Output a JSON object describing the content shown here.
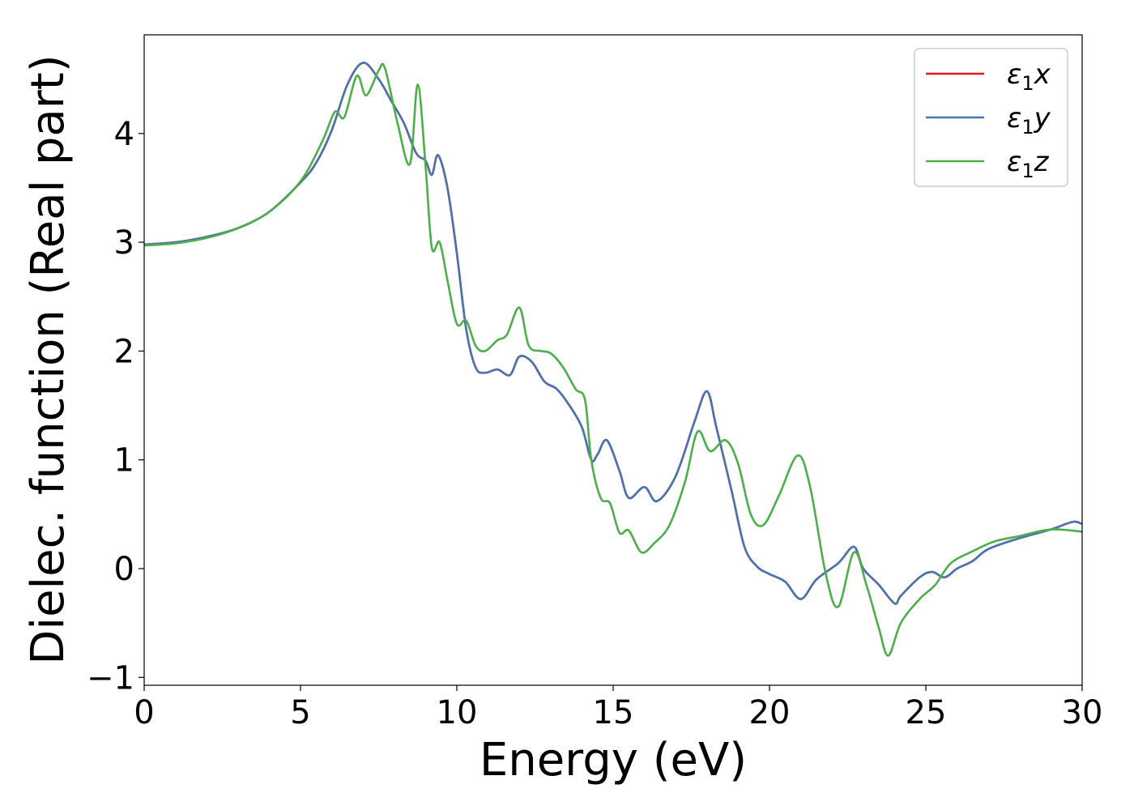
{
  "chart_data": {
    "type": "line",
    "title": "",
    "xlabel": "Energy (eV)",
    "ylabel": "Dielec. function (Real part)",
    "xlim": [
      0,
      30
    ],
    "ylim": [
      -1.1,
      4.9
    ],
    "xticks": [
      {
        "value": 0,
        "label": "0"
      },
      {
        "value": 5,
        "label": "5"
      },
      {
        "value": 10,
        "label": "10"
      },
      {
        "value": 15,
        "label": "15"
      },
      {
        "value": 20,
        "label": "20"
      },
      {
        "value": 25,
        "label": "25"
      },
      {
        "value": 30,
        "label": "30"
      }
    ],
    "yticks": [
      {
        "value": -1,
        "label": "−1"
      },
      {
        "value": 0,
        "label": "0"
      },
      {
        "value": 1,
        "label": "1"
      },
      {
        "value": 2,
        "label": "2"
      },
      {
        "value": 3,
        "label": "3"
      },
      {
        "value": 4,
        "label": "4"
      }
    ],
    "grid": false,
    "legend_position": "top-right",
    "series": [
      {
        "name": "ε1x",
        "sub_base": "ε",
        "sub_index": "1",
        "sub_var": "x",
        "color": "#e41a1c",
        "x": [
          0,
          1,
          2,
          3,
          4,
          5,
          5.5,
          6,
          6.5,
          7,
          7.5,
          7.9,
          8.3,
          8.7,
          9,
          9.2,
          9.4,
          9.7,
          10,
          10.3,
          10.6,
          10.9,
          11.3,
          11.7,
          12,
          12.4,
          12.8,
          13.2,
          13.6,
          14,
          14.3,
          14.5,
          14.8,
          15.2,
          15.5,
          16,
          16.4,
          17,
          17.6,
          18,
          18.3,
          18.8,
          19.2,
          19.6,
          20,
          20.5,
          21,
          21.5,
          22.2,
          22.7,
          23,
          23.5,
          24,
          24.2,
          24.8,
          25.2,
          25.6,
          26,
          26.5,
          27,
          28,
          29,
          29.7,
          30
        ],
        "y": [
          2.98,
          3.0,
          3.05,
          3.13,
          3.28,
          3.55,
          3.73,
          4.03,
          4.45,
          4.65,
          4.5,
          4.3,
          4.1,
          3.82,
          3.75,
          3.62,
          3.8,
          3.5,
          2.9,
          2.2,
          1.85,
          1.8,
          1.83,
          1.78,
          1.95,
          1.9,
          1.72,
          1.65,
          1.5,
          1.3,
          1.0,
          1.05,
          1.18,
          0.9,
          0.65,
          0.75,
          0.62,
          0.85,
          1.35,
          1.63,
          1.3,
          0.7,
          0.2,
          0.02,
          -0.05,
          -0.12,
          -0.28,
          -0.1,
          0.05,
          0.2,
          0.0,
          -0.15,
          -0.32,
          -0.25,
          -0.08,
          -0.03,
          -0.08,
          0.0,
          0.07,
          0.18,
          0.28,
          0.36,
          0.43,
          0.41
        ]
      },
      {
        "name": "ε1y",
        "sub_base": "ε",
        "sub_index": "1",
        "sub_var": "y",
        "color": "#4a74b0",
        "x": [
          0,
          1,
          2,
          3,
          4,
          5,
          5.5,
          6,
          6.5,
          7,
          7.5,
          7.9,
          8.3,
          8.7,
          9,
          9.2,
          9.4,
          9.7,
          10,
          10.3,
          10.6,
          10.9,
          11.3,
          11.7,
          12,
          12.4,
          12.8,
          13.2,
          13.6,
          14,
          14.3,
          14.5,
          14.8,
          15.2,
          15.5,
          16,
          16.4,
          17,
          17.6,
          18,
          18.3,
          18.8,
          19.2,
          19.6,
          20,
          20.5,
          21,
          21.5,
          22.2,
          22.7,
          23,
          23.5,
          24,
          24.2,
          24.8,
          25.2,
          25.6,
          26,
          26.5,
          27,
          28,
          29,
          29.7,
          30
        ],
        "y": [
          2.98,
          3.0,
          3.05,
          3.13,
          3.28,
          3.55,
          3.73,
          4.03,
          4.45,
          4.65,
          4.5,
          4.3,
          4.1,
          3.82,
          3.75,
          3.62,
          3.8,
          3.5,
          2.9,
          2.2,
          1.85,
          1.8,
          1.83,
          1.78,
          1.95,
          1.9,
          1.72,
          1.65,
          1.5,
          1.3,
          1.0,
          1.05,
          1.18,
          0.9,
          0.65,
          0.75,
          0.62,
          0.85,
          1.35,
          1.63,
          1.3,
          0.7,
          0.2,
          0.02,
          -0.05,
          -0.12,
          -0.28,
          -0.1,
          0.05,
          0.2,
          0.0,
          -0.15,
          -0.32,
          -0.25,
          -0.08,
          -0.03,
          -0.08,
          0.0,
          0.07,
          0.18,
          0.28,
          0.36,
          0.43,
          0.41
        ]
      },
      {
        "name": "ε1z",
        "sub_base": "ε",
        "sub_index": "1",
        "sub_var": "z",
        "color": "#4daf4a",
        "x": [
          0,
          1,
          2,
          3,
          4,
          5,
          5.7,
          6.1,
          6.4,
          6.8,
          7.1,
          7.5,
          7.7,
          8.1,
          8.5,
          8.75,
          9.0,
          9.2,
          9.45,
          9.7,
          10.0,
          10.3,
          10.6,
          10.9,
          11.3,
          11.6,
          12.0,
          12.3,
          12.7,
          13.0,
          13.4,
          13.8,
          14.1,
          14.3,
          14.6,
          14.9,
          15.2,
          15.5,
          15.9,
          16.3,
          16.8,
          17.3,
          17.7,
          18.1,
          18.6,
          19.0,
          19.4,
          19.8,
          20.3,
          20.9,
          21.3,
          21.8,
          22.2,
          22.7,
          23.1,
          23.5,
          23.8,
          24.2,
          24.8,
          25.3,
          25.8,
          26.5,
          27.2,
          28.0,
          29.0,
          30.0
        ],
        "y": [
          2.97,
          2.99,
          3.04,
          3.13,
          3.28,
          3.56,
          3.93,
          4.2,
          4.15,
          4.53,
          4.35,
          4.58,
          4.6,
          4.1,
          3.72,
          4.45,
          3.7,
          2.95,
          3.0,
          2.65,
          2.25,
          2.28,
          2.05,
          2.0,
          2.1,
          2.15,
          2.4,
          2.05,
          2.0,
          1.98,
          1.85,
          1.65,
          1.55,
          1.0,
          0.65,
          0.6,
          0.33,
          0.35,
          0.15,
          0.23,
          0.4,
          0.8,
          1.26,
          1.08,
          1.18,
          0.96,
          0.5,
          0.4,
          0.67,
          1.04,
          0.75,
          -0.05,
          -0.35,
          0.15,
          -0.15,
          -0.55,
          -0.8,
          -0.5,
          -0.28,
          -0.15,
          0.05,
          0.16,
          0.25,
          0.3,
          0.36,
          0.34
        ]
      }
    ]
  }
}
